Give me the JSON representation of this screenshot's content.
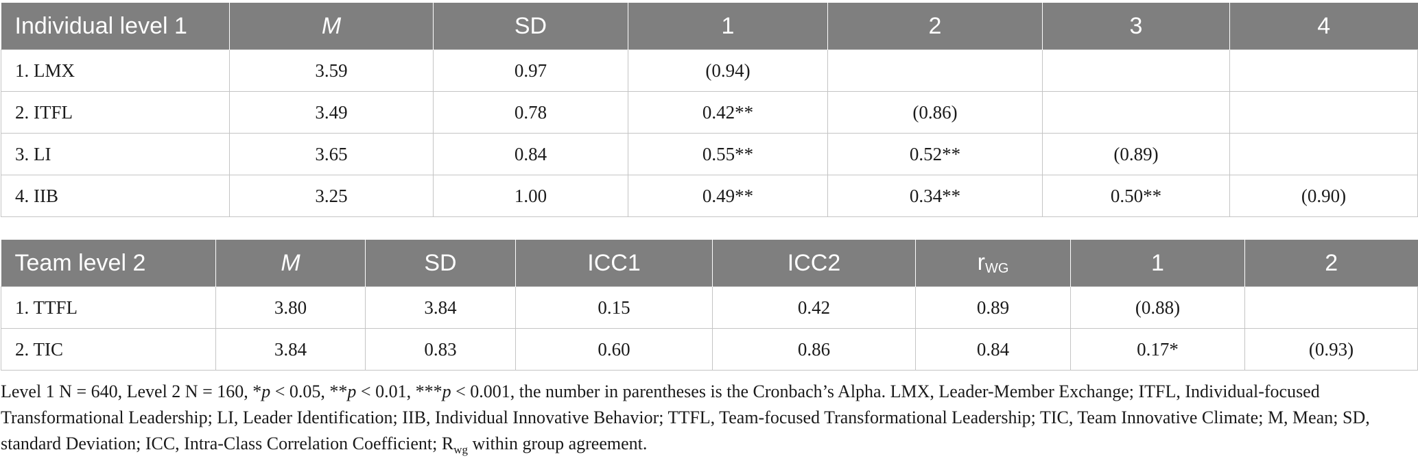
{
  "table1": {
    "headers": [
      "Individual level 1",
      "M",
      "SD",
      "1",
      "2",
      "3",
      "4"
    ],
    "rows": [
      [
        "1. LMX",
        "3.59",
        "0.97",
        "(0.94)",
        "",
        "",
        ""
      ],
      [
        "2. ITFL",
        "3.49",
        "0.78",
        "0.42**",
        "(0.86)",
        "",
        ""
      ],
      [
        "3. LI",
        "3.65",
        "0.84",
        "0.55**",
        "0.52**",
        "(0.89)",
        ""
      ],
      [
        "4. IIB",
        "3.25",
        "1.00",
        "0.49**",
        "0.34**",
        "0.50**",
        "(0.90)"
      ]
    ]
  },
  "table2": {
    "headers": [
      "Team level 2",
      "M",
      "SD",
      "ICC1",
      "ICC2",
      "r",
      "1",
      "2"
    ],
    "rwg_subscript": "WG",
    "rows": [
      [
        "1. TTFL",
        "3.80",
        "3.84",
        "0.15",
        "0.42",
        "0.89",
        "(0.88)",
        ""
      ],
      [
        "2. TIC",
        "3.84",
        "0.83",
        "0.60",
        "0.86",
        "0.84",
        "0.17*",
        "(0.93)"
      ]
    ]
  },
  "note": {
    "part1": "Level 1 N = 640, Level 2 N = 160, *",
    "p1": "p",
    "part2": " < 0.05, **",
    "p2": "p",
    "part3": " < 0.01, ***",
    "p3": "p",
    "part4": " < 0.001, the number in parentheses is the Cronbach’s Alpha. LMX, Leader-Member Exchange; ITFL, Individual-focused Transformational Leadership; LI, Leader Identification; IIB, Individual Innovative Behavior; TTFL, Team-focused Transformational Leadership; TIC, Team Innovative Climate; M, Mean; SD, standard Deviation; ICC, Intra-Class Correlation Coefficient; R",
    "rwg_sub": "wg",
    "part5": " within group agreement."
  }
}
